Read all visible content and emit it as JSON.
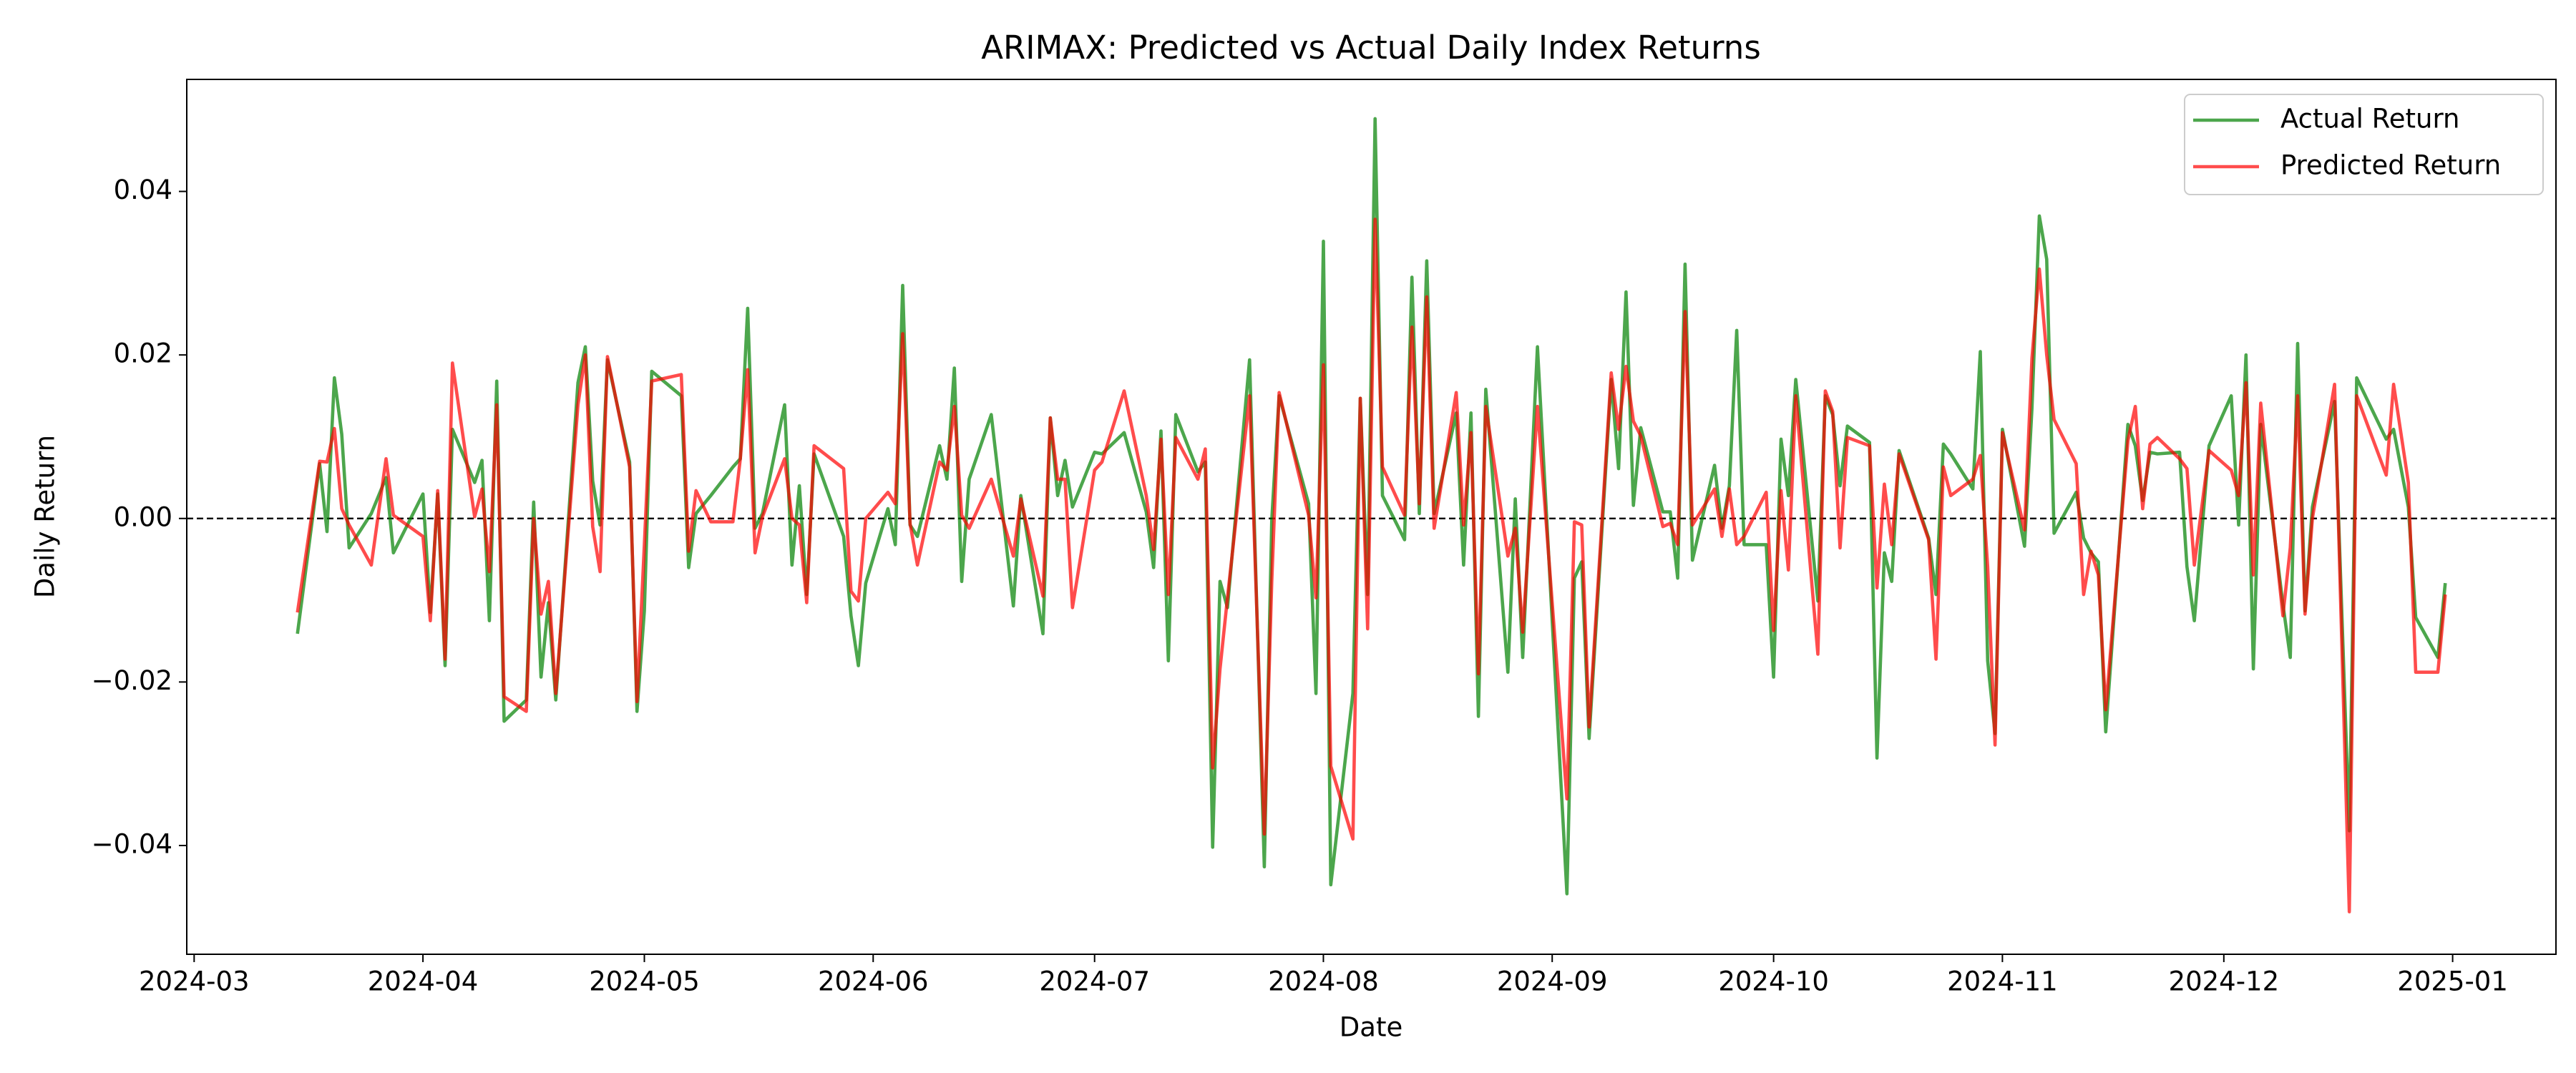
{
  "chart_data": {
    "type": "line",
    "title": "ARIMAX: Predicted vs Actual Daily Index Returns",
    "x_label": "Date",
    "y_label": "Daily Return",
    "x": [
      "2024-03-15",
      "2024-03-18",
      "2024-03-19",
      "2024-03-20",
      "2024-03-21",
      "2024-03-22",
      "2024-03-25",
      "2024-03-27",
      "2024-03-28",
      "2024-04-01",
      "2024-04-02",
      "2024-04-03",
      "2024-04-04",
      "2024-04-05",
      "2024-04-08",
      "2024-04-09",
      "2024-04-10",
      "2024-04-11",
      "2024-04-12",
      "2024-04-15",
      "2024-04-16",
      "2024-04-17",
      "2024-04-18",
      "2024-04-19",
      "2024-04-22",
      "2024-04-23",
      "2024-04-24",
      "2024-04-25",
      "2024-04-26",
      "2024-04-29",
      "2024-04-30",
      "2024-05-01",
      "2024-05-02",
      "2024-05-06",
      "2024-05-07",
      "2024-05-08",
      "2024-05-10",
      "2024-05-13",
      "2024-05-14",
      "2024-05-15",
      "2024-05-16",
      "2024-05-17",
      "2024-05-20",
      "2024-05-21",
      "2024-05-22",
      "2024-05-23",
      "2024-05-24",
      "2024-05-28",
      "2024-05-29",
      "2024-05-30",
      "2024-05-31",
      "2024-06-03",
      "2024-06-04",
      "2024-06-05",
      "2024-06-06",
      "2024-06-07",
      "2024-06-10",
      "2024-06-11",
      "2024-06-12",
      "2024-06-13",
      "2024-06-14",
      "2024-06-17",
      "2024-06-20",
      "2024-06-21",
      "2024-06-24",
      "2024-06-25",
      "2024-06-26",
      "2024-06-27",
      "2024-06-28",
      "2024-07-01",
      "2024-07-02",
      "2024-07-05",
      "2024-07-08",
      "2024-07-09",
      "2024-07-10",
      "2024-07-11",
      "2024-07-12",
      "2024-07-15",
      "2024-07-16",
      "2024-07-17",
      "2024-07-18",
      "2024-07-19",
      "2024-07-22",
      "2024-07-24",
      "2024-07-25",
      "2024-07-26",
      "2024-07-30",
      "2024-07-31",
      "2024-08-01",
      "2024-08-02",
      "2024-08-05",
      "2024-08-06",
      "2024-08-07",
      "2024-08-08",
      "2024-08-09",
      "2024-08-12",
      "2024-08-13",
      "2024-08-14",
      "2024-08-15",
      "2024-08-16",
      "2024-08-19",
      "2024-08-20",
      "2024-08-21",
      "2024-08-22",
      "2024-08-23",
      "2024-08-26",
      "2024-08-27",
      "2024-08-28",
      "2024-08-30",
      "2024-09-03",
      "2024-09-04",
      "2024-09-05",
      "2024-09-06",
      "2024-09-09",
      "2024-09-10",
      "2024-09-11",
      "2024-09-12",
      "2024-09-13",
      "2024-09-16",
      "2024-09-17",
      "2024-09-18",
      "2024-09-19",
      "2024-09-20",
      "2024-09-23",
      "2024-09-24",
      "2024-09-25",
      "2024-09-26",
      "2024-09-27",
      "2024-09-30",
      "2024-10-01",
      "2024-10-02",
      "2024-10-03",
      "2024-10-04",
      "2024-10-07",
      "2024-10-08",
      "2024-10-09",
      "2024-10-10",
      "2024-10-11",
      "2024-10-14",
      "2024-10-15",
      "2024-10-16",
      "2024-10-17",
      "2024-10-18",
      "2024-10-22",
      "2024-10-23",
      "2024-10-24",
      "2024-10-25",
      "2024-10-28",
      "2024-10-29",
      "2024-10-30",
      "2024-10-31",
      "2024-11-01",
      "2024-11-04",
      "2024-11-05",
      "2024-11-06",
      "2024-11-07",
      "2024-11-08",
      "2024-11-11",
      "2024-11-12",
      "2024-11-13",
      "2024-11-14",
      "2024-11-15",
      "2024-11-18",
      "2024-11-19",
      "2024-11-20",
      "2024-11-21",
      "2024-11-22",
      "2024-11-25",
      "2024-11-26",
      "2024-11-27",
      "2024-11-29",
      "2024-12-02",
      "2024-12-03",
      "2024-12-04",
      "2024-12-05",
      "2024-12-06",
      "2024-12-09",
      "2024-12-10",
      "2024-12-11",
      "2024-12-12",
      "2024-12-13",
      "2024-12-16",
      "2024-12-18",
      "2024-12-19",
      "2024-12-23",
      "2024-12-24",
      "2024-12-26",
      "2024-12-27",
      "2024-12-30",
      "2024-12-31"
    ],
    "series": [
      {
        "name": "Actual Return",
        "color": "green",
        "alpha": 0.7,
        "values": [
          -0.0141,
          0.0067,
          -0.0016,
          0.0172,
          0.0103,
          -0.0036,
          0.0006,
          0.005,
          -0.0042,
          0.003,
          -0.0115,
          0.003,
          -0.018,
          0.0109,
          0.0044,
          0.0071,
          -0.0125,
          0.0168,
          -0.0248,
          -0.0222,
          0.002,
          -0.0194,
          -0.0103,
          -0.0222,
          0.0166,
          0.021,
          0.0046,
          -0.0008,
          0.0194,
          0.0069,
          -0.0236,
          -0.0113,
          0.018,
          0.015,
          -0.006,
          0.0006,
          0.0028,
          0.0063,
          0.0073,
          0.0257,
          -0.0012,
          0.0006,
          0.0139,
          -0.0057,
          0.004,
          -0.0093,
          0.0079,
          -0.0022,
          -0.0119,
          -0.018,
          -0.0079,
          0.0012,
          -0.0032,
          0.0285,
          -0.0008,
          -0.0022,
          0.0089,
          0.0048,
          0.0184,
          -0.0077,
          0.0048,
          0.0127,
          -0.0107,
          0.0028,
          -0.0141,
          0.0123,
          0.0028,
          0.0071,
          0.0014,
          0.0081,
          0.0079,
          0.0105,
          0.0008,
          -0.006,
          0.0107,
          -0.0174,
          0.0127,
          0.0057,
          0.0069,
          -0.0402,
          -0.0077,
          -0.0109,
          0.0194,
          -0.0426,
          -0.0002,
          0.015,
          0.0018,
          -0.0214,
          0.0339,
          -0.0448,
          -0.0214,
          0.0147,
          -0.0093,
          0.0489,
          0.0028,
          -0.0026,
          0.0295,
          0.0006,
          0.0315,
          0.0006,
          0.0129,
          -0.0057,
          0.0129,
          -0.0242,
          0.0158,
          -0.0188,
          0.0024,
          -0.017,
          0.021,
          -0.0459,
          -0.0073,
          -0.0053,
          -0.0269,
          0.017,
          0.0061,
          0.0277,
          0.0016,
          0.0111,
          0.0008,
          0.0008,
          -0.0073,
          0.0311,
          -0.0051,
          0.0065,
          -0.0012,
          0.004,
          0.023,
          -0.0032,
          -0.0032,
          -0.0194,
          0.0097,
          0.0028,
          0.017,
          -0.0101,
          0.015,
          0.0127,
          0.004,
          0.0113,
          0.0093,
          -0.0293,
          -0.0042,
          -0.0077,
          0.0083,
          -0.0024,
          -0.0093,
          0.0091,
          0.0079,
          0.0036,
          0.0204,
          -0.0174,
          -0.0263,
          0.0109,
          -0.0034,
          0.0135,
          0.037,
          0.0317,
          -0.0018,
          0.0032,
          -0.0024,
          -0.0042,
          -0.0053,
          -0.0261,
          0.0115,
          0.0089,
          0.0022,
          0.0081,
          0.0079,
          0.0081,
          -0.0059,
          -0.0125,
          0.0089,
          0.015,
          -0.0008,
          0.02,
          -0.0184,
          0.0115,
          -0.0105,
          -0.017,
          0.0214,
          -0.0113,
          0.0014,
          0.0143,
          -0.0382,
          0.0172,
          0.0097,
          0.0109,
          0.0014,
          -0.0121,
          -0.017,
          -0.0079
        ]
      },
      {
        "name": "Predicted Return",
        "color": "red",
        "alpha": 0.7,
        "values": [
          -0.0115,
          0.007,
          0.0069,
          0.011,
          0.0012,
          -0.0008,
          -0.0057,
          0.0073,
          0.0004,
          -0.0022,
          -0.0125,
          0.0034,
          -0.0172,
          0.019,
          0.0002,
          0.0036,
          -0.0065,
          0.0139,
          -0.0218,
          -0.0236,
          0.0,
          -0.0117,
          -0.0077,
          -0.0214,
          0.0139,
          0.02,
          -0.001,
          -0.0065,
          0.0198,
          0.0063,
          -0.0224,
          -0.0032,
          0.0168,
          0.0176,
          -0.004,
          0.0034,
          -0.0004,
          -0.0004,
          0.0073,
          0.0182,
          -0.0042,
          0.0002,
          0.0073,
          0.0,
          -0.0008,
          -0.0103,
          0.0089,
          0.0061,
          -0.0089,
          -0.0101,
          0.0,
          0.0032,
          0.0018,
          0.0226,
          -0.0006,
          -0.0057,
          0.0069,
          0.0059,
          0.0137,
          0.0004,
          -0.0012,
          0.0048,
          -0.0046,
          0.0024,
          -0.0095,
          0.0123,
          0.0048,
          0.0048,
          -0.0109,
          0.0059,
          0.0069,
          0.0156,
          0.0028,
          -0.0038,
          0.0097,
          -0.0093,
          0.0099,
          0.0048,
          0.0085,
          -0.0305,
          -0.0184,
          -0.0097,
          0.015,
          -0.0386,
          -0.0077,
          0.0154,
          0.0004,
          -0.0097,
          0.0188,
          -0.0303,
          -0.0392,
          0.0147,
          -0.0135,
          0.0366,
          0.0063,
          0.0004,
          0.0234,
          0.0018,
          0.0271,
          -0.0012,
          0.0154,
          -0.0008,
          0.0105,
          -0.019,
          0.0137,
          -0.0046,
          -0.0012,
          -0.0139,
          0.0137,
          -0.0343,
          -0.0004,
          -0.0008,
          -0.0255,
          0.0178,
          0.0109,
          0.0186,
          0.0119,
          0.0101,
          -0.001,
          -0.0006,
          -0.0032,
          0.0253,
          -0.0008,
          0.0036,
          -0.0022,
          0.0036,
          -0.0032,
          -0.0022,
          0.0032,
          -0.0137,
          0.0034,
          -0.0063,
          0.015,
          -0.0166,
          0.0156,
          0.0131,
          -0.0036,
          0.0099,
          0.0089,
          -0.0085,
          0.0042,
          -0.0032,
          0.0079,
          -0.0026,
          -0.0172,
          0.0063,
          0.0028,
          0.0048,
          0.0077,
          -0.0059,
          -0.0277,
          0.0105,
          -0.0014,
          0.0196,
          0.0305,
          0.02,
          0.0121,
          0.0067,
          -0.0093,
          -0.004,
          -0.0069,
          -0.0234,
          0.0095,
          0.0137,
          0.0012,
          0.0091,
          0.0099,
          0.0073,
          0.0061,
          -0.0057,
          0.0083,
          0.0059,
          0.0028,
          0.0166,
          -0.0069,
          0.0141,
          -0.0119,
          -0.0036,
          0.015,
          -0.0117,
          0.0,
          0.0164,
          -0.0481,
          0.015,
          0.0053,
          0.0164,
          0.0044,
          -0.0188,
          -0.0188,
          -0.0093
        ]
      }
    ],
    "xlim": [
      "2024-02-29",
      "2025-01-15"
    ],
    "xticks": [
      {
        "value": "2024-03-01",
        "label": "2024-03"
      },
      {
        "value": "2024-04-01",
        "label": "2024-04"
      },
      {
        "value": "2024-05-01",
        "label": "2024-05"
      },
      {
        "value": "2024-06-01",
        "label": "2024-06"
      },
      {
        "value": "2024-07-01",
        "label": "2024-07"
      },
      {
        "value": "2024-08-01",
        "label": "2024-08"
      },
      {
        "value": "2024-09-01",
        "label": "2024-09"
      },
      {
        "value": "2024-10-01",
        "label": "2024-10"
      },
      {
        "value": "2024-11-01",
        "label": "2024-11"
      },
      {
        "value": "2024-12-01",
        "label": "2024-12"
      },
      {
        "value": "2025-01-01",
        "label": "2025-01"
      }
    ],
    "ylim": [
      -0.0533,
      0.0537
    ],
    "yticks": [
      {
        "value": -0.04,
        "label": "−0.04"
      },
      {
        "value": -0.02,
        "label": "−0.02"
      },
      {
        "value": 0,
        "label": "0.00"
      },
      0.02,
      0.04
    ],
    "reference_line": 0,
    "grid": false,
    "legend": "upper right"
  }
}
